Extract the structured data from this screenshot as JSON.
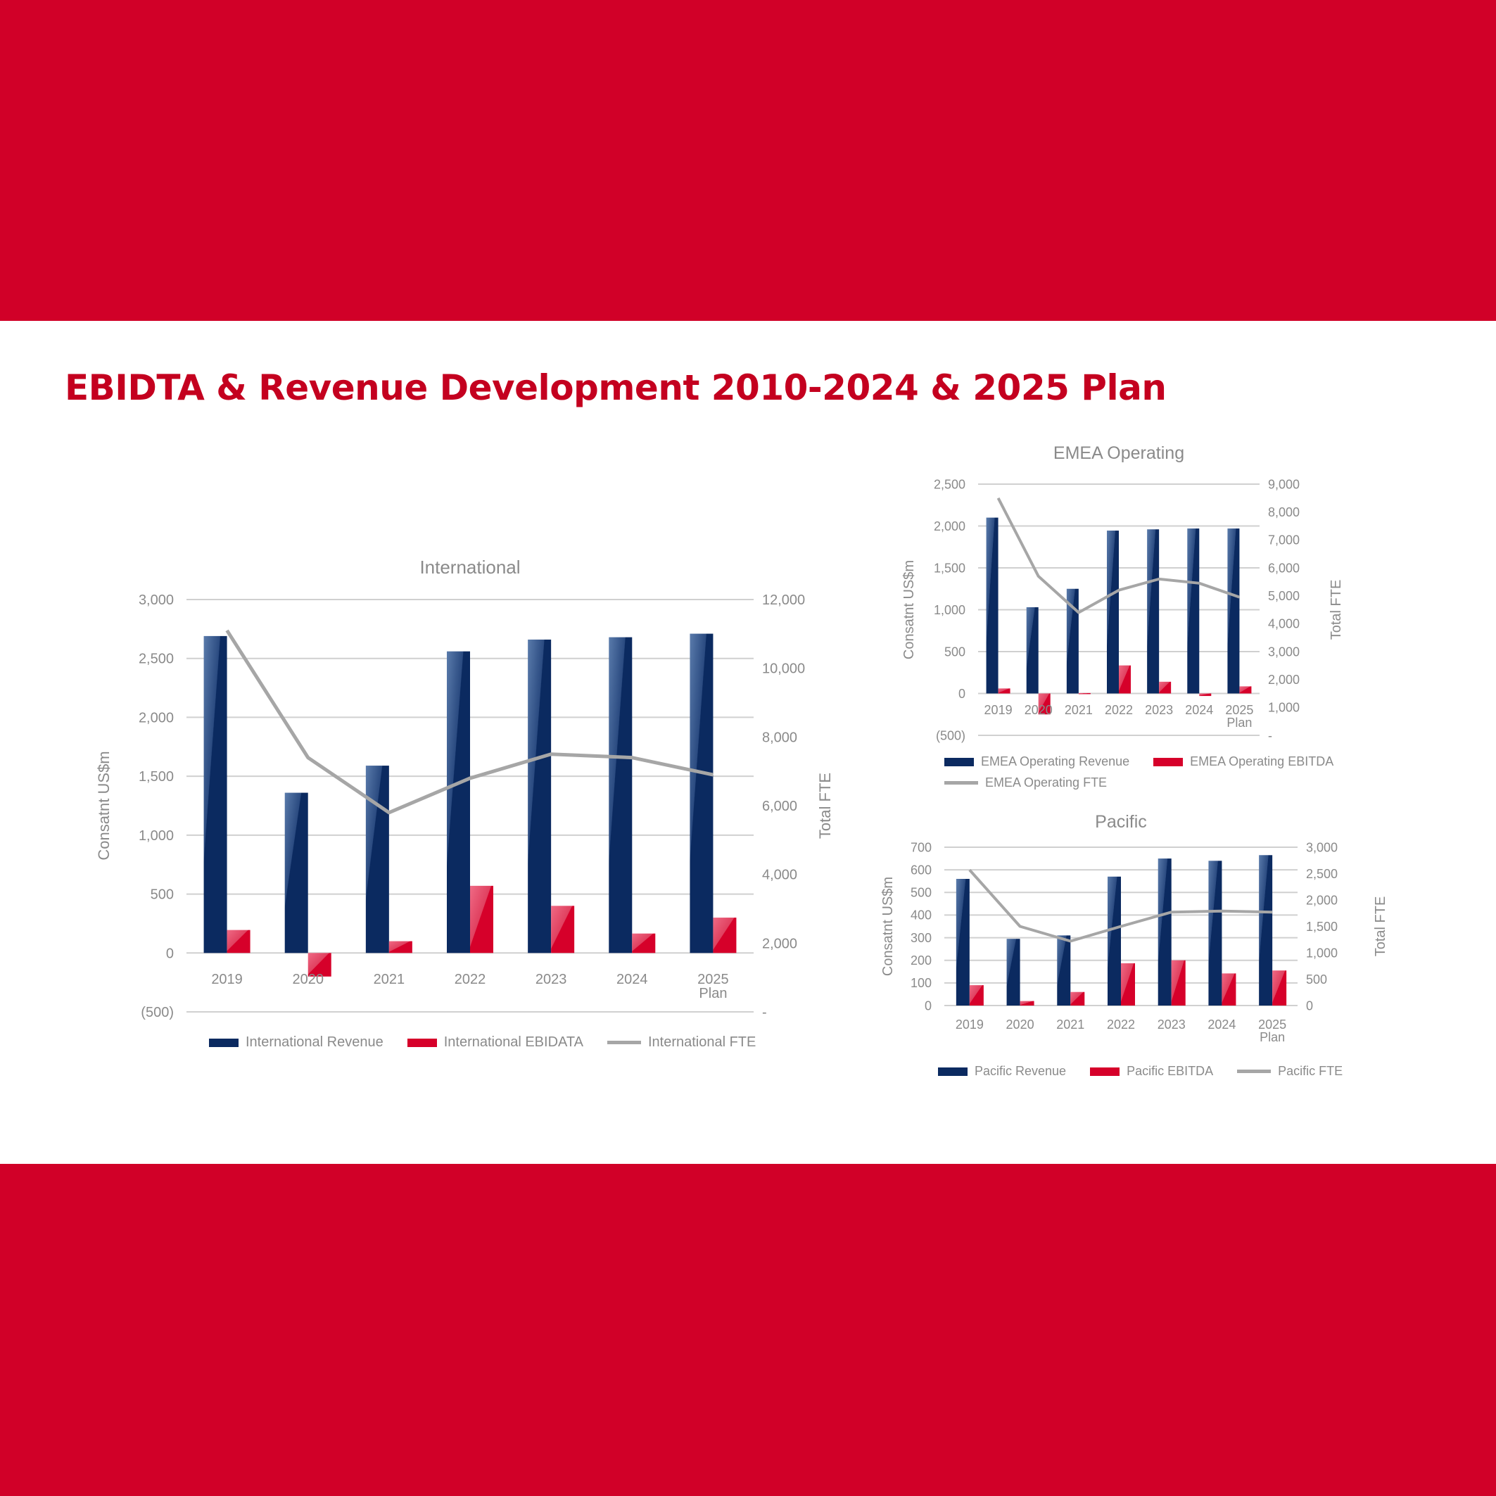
{
  "page": {
    "title": "EBIDTA & Revenue Development 2010-2024 & 2025 Plan",
    "colors": {
      "background": "#d10028",
      "panel": "#ffffff",
      "title": "#c4001f",
      "revenue": "#0b2a60",
      "ebitda": "#d6002a",
      "fte": "#a6a6a6",
      "grid": "#d0d0d0",
      "text": "#8a8a8a"
    }
  },
  "chart_data": [
    {
      "type": "bar",
      "title": "International",
      "categories": [
        "2019",
        "2020",
        "2021",
        "2022",
        "2023",
        "2024",
        "2025 Plan"
      ],
      "ylabel": "Consatnt US$m",
      "y2label": "Total FTE",
      "ylim": [
        -500,
        3000
      ],
      "y2lim": [
        0,
        12000
      ],
      "yticks": {
        "values": [
          3000,
          2500,
          2000,
          1500,
          1000,
          500,
          0,
          -500
        ],
        "labels": [
          "3,000",
          "2,500",
          "2,000",
          "1,500",
          "1,000",
          "500",
          "0",
          "(500)"
        ]
      },
      "y2ticks": {
        "values": [
          12000,
          10000,
          8000,
          6000,
          4000,
          2000,
          0
        ],
        "labels": [
          "12,000",
          "10,000",
          "8,000",
          "6,000",
          "4,000",
          "2,000",
          "-"
        ]
      },
      "grid": true,
      "legend": "bottom",
      "series": [
        {
          "name": "International Revenue",
          "type": "bar",
          "axis": "left",
          "values": [
            2690,
            1360,
            1590,
            2560,
            2660,
            2680,
            2710
          ]
        },
        {
          "name": "International EBIDATA",
          "type": "bar",
          "axis": "left",
          "values": [
            195,
            -200,
            100,
            570,
            400,
            165,
            300
          ]
        },
        {
          "name": "International FTE",
          "type": "line",
          "axis": "right",
          "values": [
            11100,
            7400,
            5800,
            6800,
            7500,
            7400,
            6900
          ]
        }
      ]
    },
    {
      "type": "bar",
      "title": "EMEA Operating",
      "categories": [
        "2019",
        "2020",
        "2021",
        "2022",
        "2023",
        "2024",
        "2025 Plan"
      ],
      "ylabel": "Consatnt US$m",
      "y2label": "Total FTE",
      "ylim": [
        -500,
        2500
      ],
      "y2lim": [
        0,
        9000
      ],
      "yticks": {
        "values": [
          2500,
          2000,
          1500,
          1000,
          500,
          0,
          -500
        ],
        "labels": [
          "2,500",
          "2,000",
          "1,500",
          "1,000",
          "500",
          "0",
          "(500)"
        ]
      },
      "y2ticks": {
        "values": [
          9000,
          8000,
          7000,
          6000,
          5000,
          4000,
          3000,
          2000,
          1000,
          0
        ],
        "labels": [
          "9,000",
          "8,000",
          "7,000",
          "6,000",
          "5,000",
          "4,000",
          "3,000",
          "2,000",
          "1,000",
          "-"
        ]
      },
      "grid": true,
      "legend": "bottom",
      "series": [
        {
          "name": "EMEA Operating Revenue",
          "type": "bar",
          "axis": "left",
          "values": [
            2100,
            1030,
            1250,
            1945,
            1960,
            1970,
            1970
          ]
        },
        {
          "name": "EMEA Operating EBITDA",
          "type": "bar",
          "axis": "left",
          "values": [
            60,
            -250,
            5,
            335,
            140,
            -30,
            85
          ]
        },
        {
          "name": "EMEA Operating FTE",
          "type": "line",
          "axis": "right",
          "values": [
            8500,
            5700,
            4400,
            5200,
            5600,
            5450,
            4950
          ]
        }
      ]
    },
    {
      "type": "bar",
      "title": "Pacific",
      "categories": [
        "2019",
        "2020",
        "2021",
        "2022",
        "2023",
        "2024",
        "2025 Plan"
      ],
      "ylabel": "Consatnt US$m",
      "y2label": "Total FTE",
      "ylim": [
        0,
        700
      ],
      "y2lim": [
        0,
        3000
      ],
      "yticks": {
        "values": [
          700,
          600,
          500,
          400,
          300,
          200,
          100,
          0
        ],
        "labels": [
          "700",
          "600",
          "500",
          "400",
          "300",
          "200",
          "100",
          "0"
        ]
      },
      "y2ticks": {
        "values": [
          3000,
          2500,
          2000,
          1500,
          1000,
          500,
          0
        ],
        "labels": [
          "3,000",
          "2,500",
          "2,000",
          "1,500",
          "1,000",
          "500",
          "0"
        ]
      },
      "grid": true,
      "legend": "bottom",
      "series": [
        {
          "name": "Pacific Revenue",
          "type": "bar",
          "axis": "left",
          "values": [
            560,
            295,
            310,
            570,
            650,
            640,
            665
          ]
        },
        {
          "name": "Pacific EBITDA",
          "type": "bar",
          "axis": "left",
          "values": [
            90,
            20,
            60,
            187,
            200,
            142,
            155
          ]
        },
        {
          "name": "Pacific FTE",
          "type": "line",
          "axis": "right",
          "values": [
            2570,
            1500,
            1220,
            1500,
            1770,
            1790,
            1770
          ]
        }
      ]
    }
  ]
}
